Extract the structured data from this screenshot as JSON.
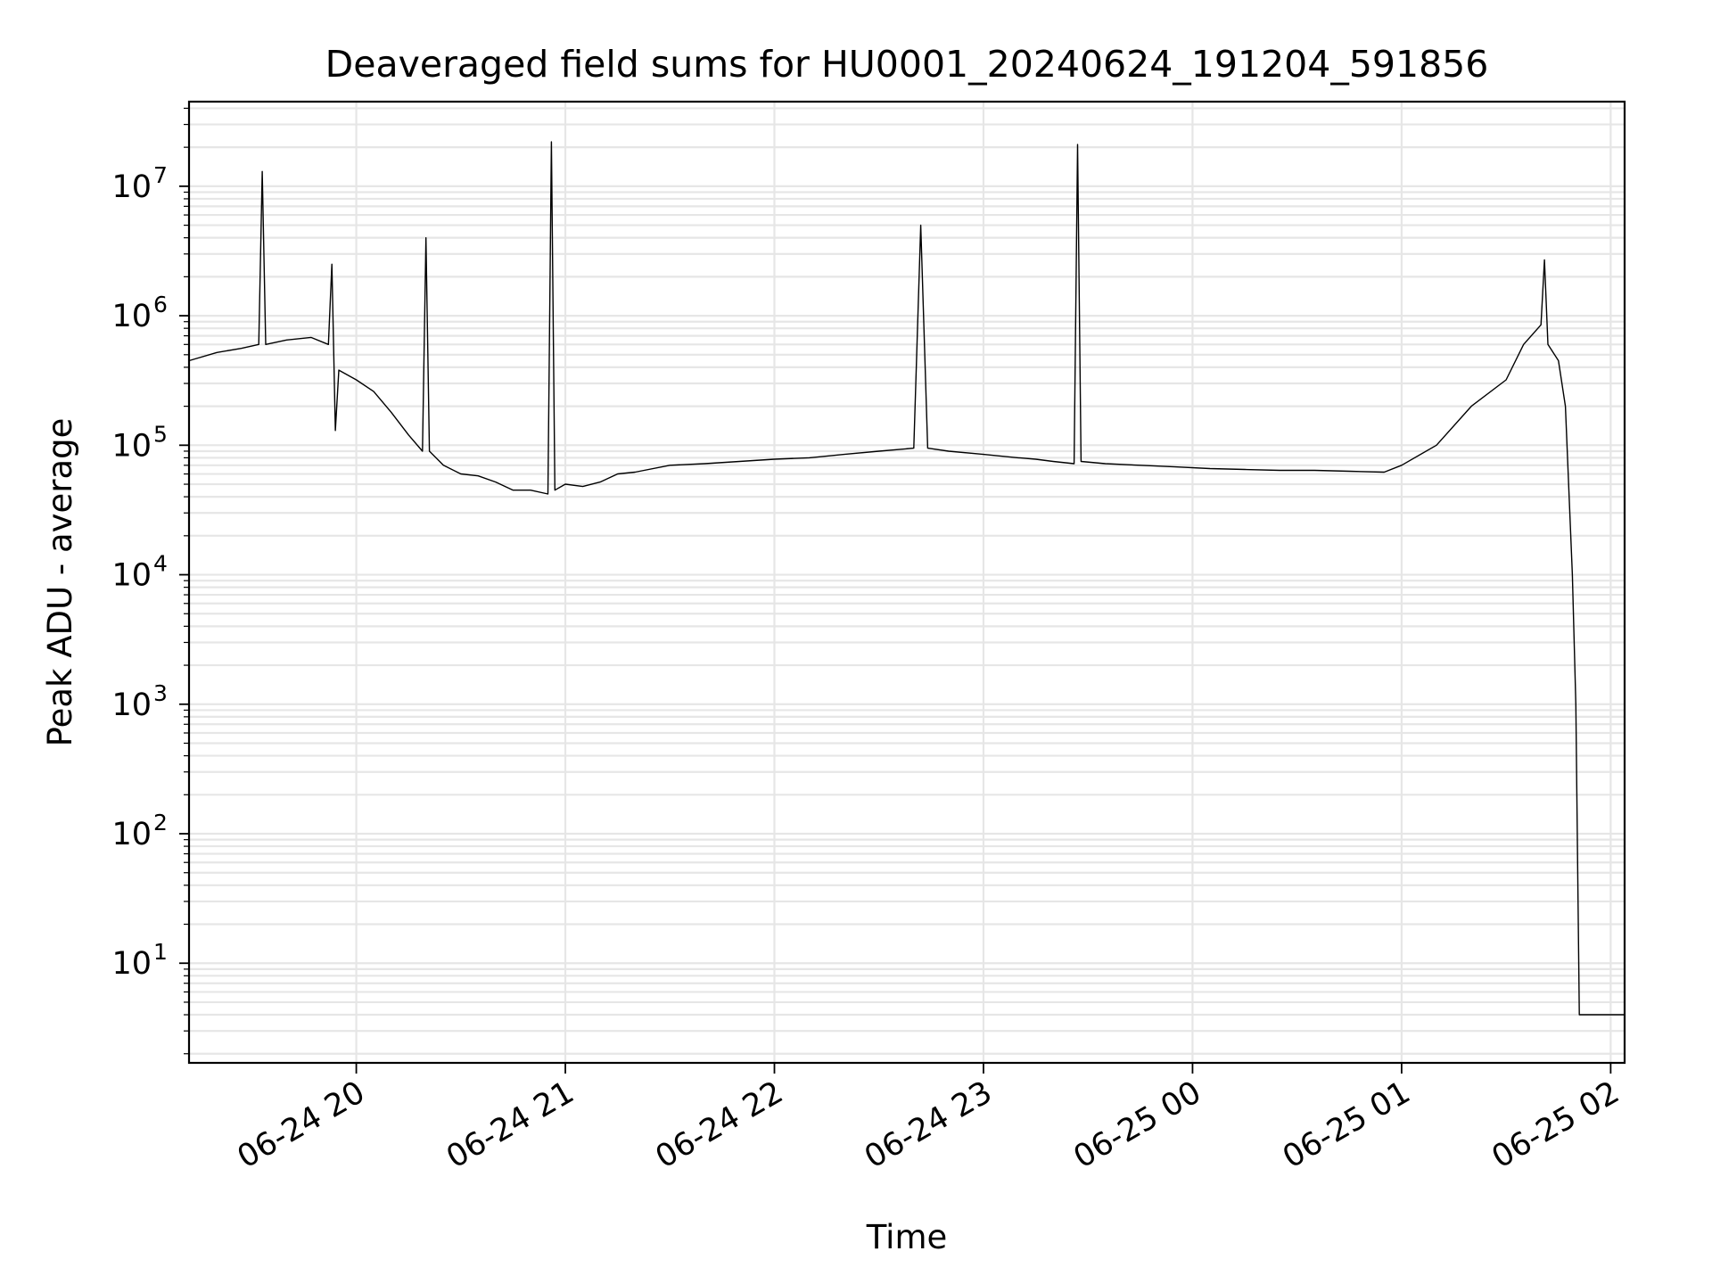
{
  "chart_data": {
    "type": "line",
    "title": "Deaveraged field sums for HU0001_20240624_191204_591856",
    "xlabel": "Time",
    "ylabel": "Peak ADU - average",
    "y_scale": "log",
    "ylim": [
      1.7,
      45000000
    ],
    "xlim": [
      "2024-06-24 19:12",
      "2024-06-25 02:04"
    ],
    "grid": true,
    "x_ticks": [
      {
        "t": "2024-06-24 20:00",
        "label": "06-24 20"
      },
      {
        "t": "2024-06-24 21:00",
        "label": "06-24 21"
      },
      {
        "t": "2024-06-24 22:00",
        "label": "06-24 22"
      },
      {
        "t": "2024-06-24 23:00",
        "label": "06-24 23"
      },
      {
        "t": "2024-06-25 00:00",
        "label": "06-25 00"
      },
      {
        "t": "2024-06-25 01:00",
        "label": "06-25 01"
      },
      {
        "t": "2024-06-25 02:00",
        "label": "06-25 02"
      }
    ],
    "y_ticks": [
      {
        "value": 10,
        "base": "10",
        "exp": "1"
      },
      {
        "value": 100,
        "base": "10",
        "exp": "2"
      },
      {
        "value": 1000,
        "base": "10",
        "exp": "3"
      },
      {
        "value": 10000,
        "base": "10",
        "exp": "4"
      },
      {
        "value": 100000,
        "base": "10",
        "exp": "5"
      },
      {
        "value": 1000000,
        "base": "10",
        "exp": "6"
      },
      {
        "value": 10000000,
        "base": "10",
        "exp": "7"
      }
    ],
    "series": [
      {
        "color": "#000000",
        "x": [
          "2024-06-24 19:12",
          "2024-06-24 19:20",
          "2024-06-24 19:27",
          "2024-06-24 19:32",
          "2024-06-24 19:33",
          "2024-06-24 19:34",
          "2024-06-24 19:40",
          "2024-06-24 19:47",
          "2024-06-24 19:52",
          "2024-06-24 19:53",
          "2024-06-24 19:54",
          "2024-06-24 19:55",
          "2024-06-24 20:00",
          "2024-06-24 20:05",
          "2024-06-24 20:10",
          "2024-06-24 20:15",
          "2024-06-24 20:19",
          "2024-06-24 20:20",
          "2024-06-24 20:21",
          "2024-06-24 20:25",
          "2024-06-24 20:30",
          "2024-06-24 20:35",
          "2024-06-24 20:40",
          "2024-06-24 20:45",
          "2024-06-24 20:50",
          "2024-06-24 20:55",
          "2024-06-24 20:56",
          "2024-06-24 20:57",
          "2024-06-24 21:00",
          "2024-06-24 21:05",
          "2024-06-24 21:10",
          "2024-06-24 21:15",
          "2024-06-24 21:20",
          "2024-06-24 21:30",
          "2024-06-24 21:40",
          "2024-06-24 21:50",
          "2024-06-24 22:00",
          "2024-06-24 22:10",
          "2024-06-24 22:20",
          "2024-06-24 22:30",
          "2024-06-24 22:40",
          "2024-06-24 22:42",
          "2024-06-24 22:44",
          "2024-06-24 22:50",
          "2024-06-24 23:00",
          "2024-06-24 23:10",
          "2024-06-24 23:15",
          "2024-06-24 23:20",
          "2024-06-24 23:26",
          "2024-06-24 23:27",
          "2024-06-24 23:28",
          "2024-06-24 23:35",
          "2024-06-24 23:45",
          "2024-06-24 23:55",
          "2024-06-25 00:05",
          "2024-06-25 00:15",
          "2024-06-25 00:25",
          "2024-06-25 00:35",
          "2024-06-25 00:45",
          "2024-06-25 00:55",
          "2024-06-25 01:00",
          "2024-06-25 01:10",
          "2024-06-25 01:20",
          "2024-06-25 01:30",
          "2024-06-25 01:35",
          "2024-06-25 01:40",
          "2024-06-25 01:41",
          "2024-06-25 01:42",
          "2024-06-25 01:45",
          "2024-06-25 01:47",
          "2024-06-25 01:49",
          "2024-06-25 01:50",
          "2024-06-25 01:51",
          "2024-06-25 01:52",
          "2024-06-25 02:04"
        ],
        "y": [
          450000,
          520000,
          560000,
          600000,
          13000000,
          600000,
          650000,
          680000,
          600000,
          2500000,
          130000,
          380000,
          320000,
          260000,
          180000,
          120000,
          90000,
          4000000,
          90000,
          70000,
          60000,
          58000,
          52000,
          45000,
          45000,
          42000,
          22000000,
          45000,
          50000,
          48000,
          52000,
          60000,
          62000,
          70000,
          72000,
          75000,
          78000,
          80000,
          85000,
          90000,
          95000,
          5000000,
          95000,
          90000,
          85000,
          80000,
          78000,
          75000,
          72000,
          21000000,
          75000,
          72000,
          70000,
          68000,
          66000,
          65000,
          64000,
          64000,
          63000,
          62000,
          70000,
          100000,
          200000,
          320000,
          600000,
          850000,
          2700000,
          600000,
          450000,
          200000,
          10000,
          1000,
          4,
          4,
          4
        ]
      }
    ]
  }
}
